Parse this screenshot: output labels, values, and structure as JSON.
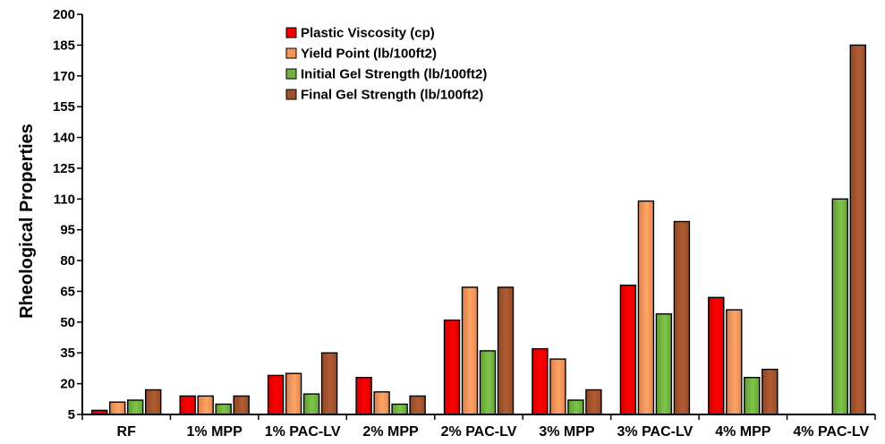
{
  "chart_data": {
    "type": "bar",
    "title": "",
    "xlabel": "",
    "ylabel": "Rheological Properties",
    "ylim": [
      5,
      200
    ],
    "yticks": [
      5,
      20,
      35,
      50,
      65,
      80,
      95,
      110,
      125,
      140,
      155,
      170,
      185,
      200
    ],
    "grid": false,
    "legend_position": "top-center",
    "categories": [
      "RF",
      "1% MPP",
      "1% PAC-LV",
      "2% MPP",
      "2% PAC-LV",
      "3% MPP",
      "3% PAC-LV",
      "4% MPP",
      "4% PAC-LV"
    ],
    "series": [
      {
        "name": "Plastic Viscosity (cp)",
        "color": "#ee0000",
        "values": [
          7,
          14,
          24,
          23,
          51,
          37,
          68,
          62,
          5
        ]
      },
      {
        "name": " Yield Point (lb/100ft2)",
        "color": "#f4935a",
        "values": [
          11,
          14,
          25,
          16,
          67,
          32,
          109,
          56,
          5
        ]
      },
      {
        "name": "Initial Gel Strength (lb/100ft2)",
        "color": "#70b040",
        "values": [
          12,
          10,
          15,
          10,
          36,
          12,
          54,
          23,
          110
        ]
      },
      {
        "name": "Final Gel Strength (lb/100ft2)",
        "color": "#a0522d",
        "values": [
          17,
          14,
          35,
          14,
          67,
          17,
          99,
          27,
          185
        ]
      }
    ]
  }
}
